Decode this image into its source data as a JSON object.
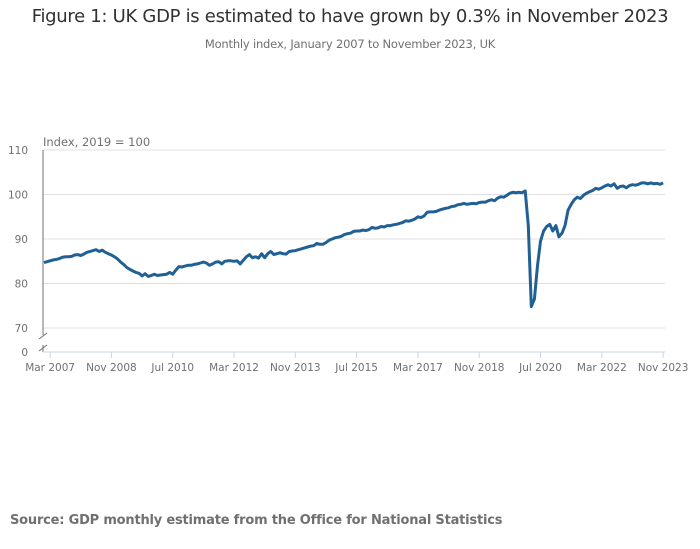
{
  "title": "Figure 1: UK GDP is estimated to have grown by 0.3% in November 2023",
  "subtitle": "Monthly index, January 2007 to November 2023, UK",
  "source": "Source: GDP monthly estimate from the Office for National Statistics",
  "chart_data": {
    "type": "line",
    "title": "Figure 1: UK GDP is estimated to have grown by 0.3% in November 2023",
    "subtitle": "Monthly index, January 2007 to November 2023, UK",
    "ylabel": "Index, 2019 = 100",
    "xlabel": "",
    "ylim": [
      70,
      110
    ],
    "y_axis_break": true,
    "y_ticks": [
      110,
      100,
      90,
      80,
      70,
      0
    ],
    "x_ticks": [
      "Mar 2007",
      "Nov 2008",
      "Jul 2010",
      "Mar 2012",
      "Nov 2013",
      "Jul 2015",
      "Mar 2017",
      "Nov 2018",
      "Jul 2020",
      "Mar 2022",
      "Nov 2023"
    ],
    "grid": true,
    "line_color": "#206095",
    "frequency": "monthly",
    "values_by_year": {
      "2007": [
        84.7,
        84.9,
        85.1,
        85.3,
        85.4,
        85.6,
        85.9,
        86.0,
        86.0,
        86.1,
        86.4,
        86.5
      ],
      "2008": [
        86.3,
        86.6,
        87.0,
        87.2,
        87.4,
        87.6,
        87.2,
        87.5,
        87.0,
        86.7,
        86.4,
        86.0
      ],
      "2009": [
        85.5,
        84.8,
        84.3,
        83.6,
        83.2,
        82.8,
        82.5,
        82.3,
        81.7,
        82.2,
        81.6,
        81.8
      ],
      "2010": [
        82.1,
        81.8,
        81.9,
        82.0,
        82.1,
        82.5,
        82.1,
        83.0,
        83.8,
        83.7,
        83.9,
        84.1
      ],
      "2011": [
        84.1,
        84.3,
        84.4,
        84.6,
        84.8,
        84.6,
        84.1,
        84.4,
        84.8,
        84.9,
        84.4,
        85.0
      ],
      "2012": [
        85.1,
        85.1,
        85.0,
        85.1,
        84.4,
        85.2,
        86.0,
        86.5,
        85.8,
        86.0,
        85.7,
        86.7
      ],
      "2013": [
        85.8,
        86.7,
        87.2,
        86.5,
        86.7,
        86.9,
        86.7,
        86.6,
        87.2,
        87.3,
        87.4,
        87.6
      ],
      "2014": [
        87.8,
        88.0,
        88.2,
        88.4,
        88.5,
        89.0,
        88.8,
        88.8,
        89.2,
        89.7,
        90.0,
        90.3
      ],
      "2015": [
        90.4,
        90.6,
        91.0,
        91.2,
        91.3,
        91.7,
        91.8,
        91.8,
        92.0,
        91.9,
        92.1,
        92.6
      ],
      "2016": [
        92.4,
        92.5,
        92.8,
        92.7,
        93.0,
        93.0,
        93.2,
        93.3,
        93.5,
        93.7,
        94.1,
        94.0
      ],
      "2017": [
        94.2,
        94.5,
        95.0,
        94.8,
        95.2,
        96.0,
        96.1,
        96.1,
        96.2,
        96.5,
        96.7,
        96.9
      ],
      "2018": [
        97.0,
        97.3,
        97.4,
        97.7,
        97.8,
        98.0,
        97.8,
        97.9,
        98.0,
        97.9,
        98.2,
        98.3
      ],
      "2019": [
        98.3,
        98.6,
        98.8,
        98.6,
        99.2,
        99.5,
        99.4,
        99.8,
        100.3,
        100.5,
        100.4,
        100.5
      ],
      "2020": [
        100.4,
        100.8,
        93.0,
        74.8,
        76.5,
        84.0,
        89.5,
        91.8,
        92.8,
        93.3,
        91.8,
        93.0
      ],
      "2021": [
        90.5,
        91.3,
        93.0,
        96.5,
        97.8,
        98.8,
        99.4,
        99.1,
        99.8,
        100.3,
        100.6,
        100.9
      ],
      "2022": [
        101.4,
        101.2,
        101.5,
        101.9,
        102.2,
        101.9,
        102.4,
        101.4,
        101.8,
        101.9,
        101.5,
        102.0
      ],
      "2023": [
        102.2,
        102.1,
        102.3,
        102.6,
        102.6,
        102.4,
        102.6,
        102.4,
        102.5,
        102.3,
        102.6
      ]
    }
  }
}
